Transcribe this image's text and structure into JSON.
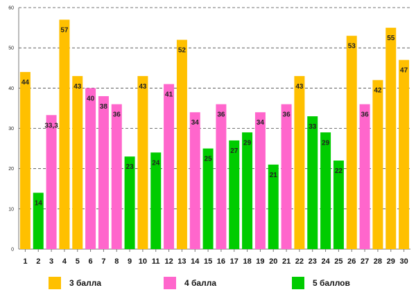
{
  "chart_data": {
    "type": "bar",
    "title": "",
    "xlabel": "",
    "ylabel": "",
    "ylim": [
      0,
      60
    ],
    "yticks": [
      "0",
      "10",
      "20",
      "30",
      "40",
      "50",
      "60"
    ],
    "grid": true,
    "categories": [
      "1",
      "2",
      "3",
      "4",
      "5",
      "6",
      "7",
      "8",
      "9",
      "10",
      "11",
      "12",
      "13",
      "14",
      "15",
      "16",
      "17",
      "18",
      "19",
      "20",
      "21",
      "22",
      "23",
      "24",
      "25",
      "26",
      "27",
      "28",
      "29",
      "30"
    ],
    "values": [
      44,
      14,
      33.3,
      57,
      43,
      40,
      38,
      36,
      23,
      43,
      24,
      41,
      52,
      34,
      25,
      36,
      27,
      29,
      34,
      21,
      36,
      43,
      33,
      29,
      22,
      53,
      36,
      42,
      55,
      47
    ],
    "value_labels": [
      "44",
      "14",
      "33,3",
      "57",
      "43",
      "40",
      "38",
      "36",
      "23",
      "43",
      "24",
      "41",
      "52",
      "34",
      "25",
      "36",
      "27",
      "29",
      "34",
      "21",
      "36",
      "43",
      "33",
      "29",
      "22",
      "53",
      "36",
      "42",
      "55",
      "47"
    ],
    "groups": [
      "3",
      "5",
      "4",
      "3",
      "3",
      "4",
      "4",
      "4",
      "5",
      "3",
      "5",
      "4",
      "3",
      "4",
      "5",
      "4",
      "5",
      "5",
      "4",
      "5",
      "4",
      "3",
      "5",
      "5",
      "5",
      "3",
      "4",
      "3",
      "3",
      "3"
    ],
    "series": [
      {
        "key": "3",
        "name": "3 балла",
        "color": "#FFC000"
      },
      {
        "key": "4",
        "name": "4 балла",
        "color": "#FF66CC"
      },
      {
        "key": "5",
        "name": "5 баллов",
        "color": "#00CC00"
      }
    ]
  }
}
